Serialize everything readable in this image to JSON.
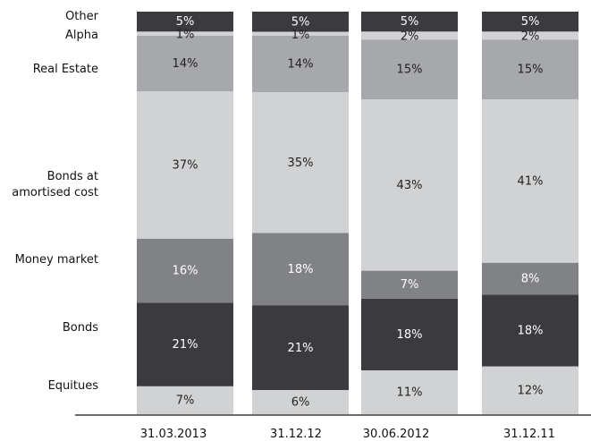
{
  "chart_data": {
    "type": "bar",
    "stacked": true,
    "normalized_percent": true,
    "categories": [
      "31.03.2013",
      "31.12.12",
      "30.06.2012",
      "31.12.11"
    ],
    "series": [
      {
        "name": "Equitues",
        "values": [
          7,
          6,
          11,
          12
        ],
        "color": "#d1d2d4",
        "label_color": "#222222"
      },
      {
        "name": "Bonds",
        "values": [
          21,
          21,
          18,
          18
        ],
        "color": "#3b3b3f",
        "label_color": "#ffffff"
      },
      {
        "name": "Money market",
        "values": [
          16,
          18,
          7,
          8
        ],
        "color": "#818286",
        "label_color": "#ffffff"
      },
      {
        "name": "Bonds at amortised cost",
        "values": [
          37,
          35,
          43,
          41
        ],
        "color": "#d1d2d4",
        "label_color": "#222222"
      },
      {
        "name": "Real Estate",
        "values": [
          14,
          14,
          15,
          15
        ],
        "color": "#a7a8ab",
        "label_color": "#222222"
      },
      {
        "name": "Alpha",
        "values": [
          1,
          1,
          2,
          2
        ],
        "color": "#d1d2d4",
        "label_color": "#222222"
      },
      {
        "name": "Other",
        "values": [
          5,
          5,
          5,
          5
        ],
        "color": "#3b3b3f",
        "label_color": "#ffffff"
      }
    ],
    "data_label_suffix": "%",
    "title": "",
    "xlabel": "",
    "ylabel": "",
    "grid": false,
    "legend": "left"
  }
}
